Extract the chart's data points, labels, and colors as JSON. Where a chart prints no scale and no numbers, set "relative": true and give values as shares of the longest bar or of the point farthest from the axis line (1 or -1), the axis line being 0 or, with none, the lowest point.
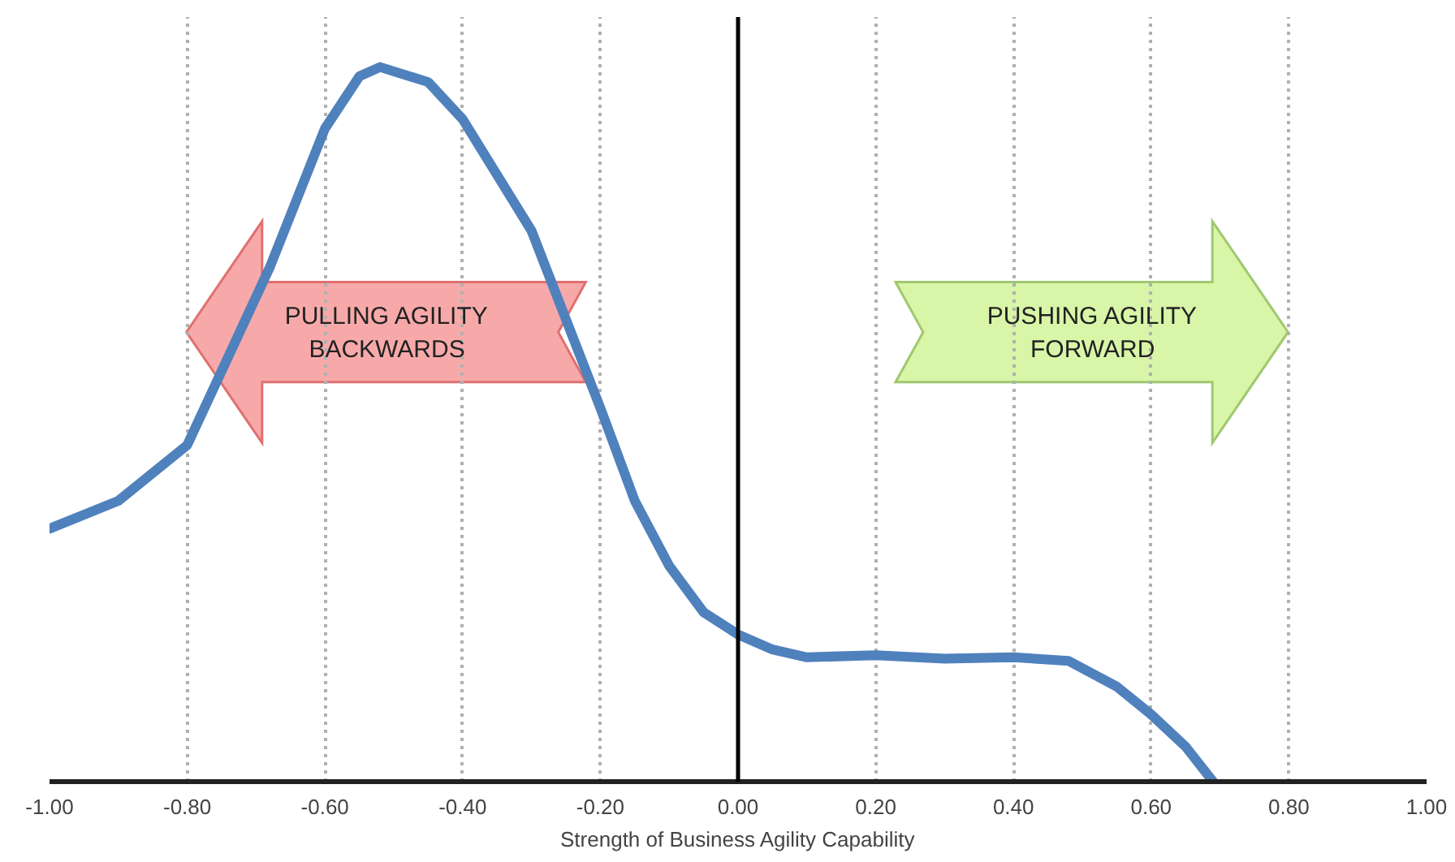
{
  "chart_data": {
    "type": "line",
    "relative": true,
    "xlabel": "Strength of Business Agility Capability",
    "x": [
      -1,
      -0.9,
      -0.8,
      -0.68,
      -0.6,
      -0.55,
      -0.52,
      -0.45,
      -0.4,
      -0.3,
      -0.2,
      -0.15,
      -0.1,
      -0.05,
      0,
      0.05,
      0.1,
      0.2,
      0.3,
      0.4,
      0.48,
      0.55,
      0.6,
      0.65,
      0.69
    ],
    "series": [
      {
        "color": "#4f81bd",
        "values": [
          0.354,
          0.393,
          0.471,
          0.72,
          0.914,
          0.987,
          1.0,
          0.979,
          0.927,
          0.771,
          0.523,
          0.393,
          0.302,
          0.237,
          0.206,
          0.185,
          0.174,
          0.177,
          0.172,
          0.174,
          0.169,
          0.133,
          0.094,
          0.049,
          0.0
        ]
      }
    ],
    "xlim": [
      -1,
      1
    ],
    "xticks": [
      {
        "value": -1,
        "label": "-1.00"
      },
      {
        "value": -0.8,
        "label": "-0.80"
      },
      {
        "value": -0.6,
        "label": "-0.60"
      },
      {
        "value": -0.4,
        "label": "-0.40"
      },
      {
        "value": -0.2,
        "label": "-0.20"
      },
      {
        "value": 0,
        "label": "0.00"
      },
      {
        "value": 0.2,
        "label": "0.20"
      },
      {
        "value": 0.4,
        "label": "0.40"
      },
      {
        "value": 0.6,
        "label": "0.60"
      },
      {
        "value": 0.8,
        "label": "0.80"
      },
      {
        "value": 1,
        "label": "1.00"
      }
    ],
    "grid": "x",
    "line_style": "solid",
    "marker": "none",
    "ref_lines": [
      {
        "axis": "x",
        "value": 0,
        "color": "#000000"
      }
    ],
    "annotations": [
      "PULLING AGILITY\nBACKWARDS",
      "PUSHING AGILITY\nFORWARD"
    ]
  }
}
